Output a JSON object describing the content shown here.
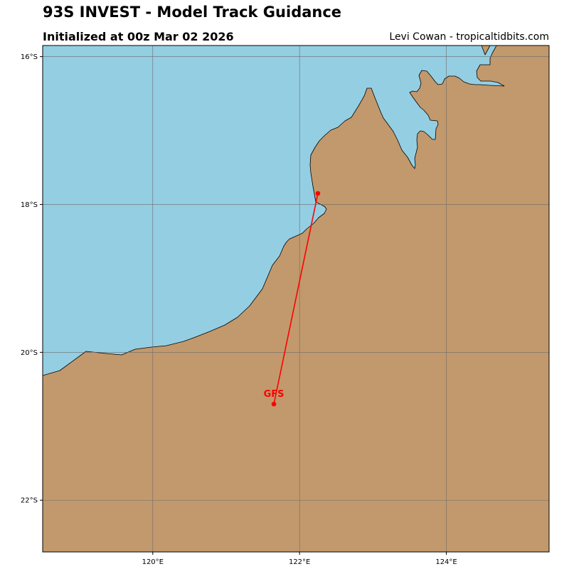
{
  "header": {
    "title": "93S INVEST - Model Track Guidance",
    "subtitle": "Initialized at 00z Mar 02 2026",
    "credit": "Levi Cowan - tropicaltidbits.com"
  },
  "map": {
    "lon_range": [
      118.5,
      125.4
    ],
    "lat_range": [
      -22.7,
      -15.85
    ],
    "colors": {
      "ocean": "#94cee3",
      "land": "#c2996c",
      "coast": "#000000",
      "grid": "#6b6b6b",
      "track": "#ff0000"
    },
    "lat_ticks": [
      {
        "value": -16,
        "label": "16°S"
      },
      {
        "value": -18,
        "label": "18°S"
      },
      {
        "value": -20,
        "label": "20°S"
      },
      {
        "value": -22,
        "label": "22°S"
      }
    ],
    "lon_ticks": [
      {
        "value": 120,
        "label": "120°E"
      },
      {
        "value": 122,
        "label": "122°E"
      },
      {
        "value": 124,
        "label": "124°E"
      }
    ],
    "tracks": [
      {
        "model": "GFS",
        "points": [
          {
            "lon": 122.25,
            "lat": -17.85
          },
          {
            "lon": 121.65,
            "lat": -20.7
          }
        ]
      }
    ]
  }
}
